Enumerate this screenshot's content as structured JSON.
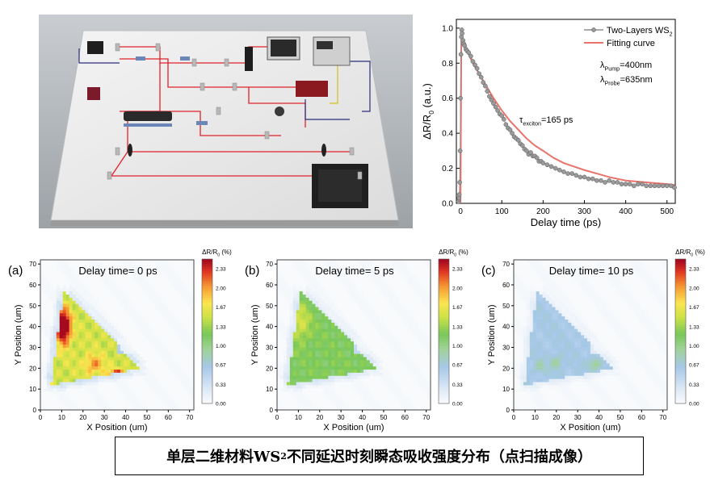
{
  "caption": {
    "before": "单层二维材料WS",
    "sub": "2",
    "after": "不同延迟时刻瞬态吸收强度分布（点扫描成像）"
  },
  "chart_data": [
    {
      "type": "scatter",
      "xlabel": "Delay time (ps)",
      "ylabel_main": "ΔR/R",
      "ylabel_sub": "0",
      "ylabel_unit": " (a.u.)",
      "xlim": [
        -10,
        520
      ],
      "ylim": [
        0,
        1.05
      ],
      "xticks": [
        0,
        100,
        200,
        300,
        400,
        500
      ],
      "yticks": [
        0.0,
        0.2,
        0.4,
        0.6,
        0.8,
        1.0
      ],
      "legend_position": "top-right",
      "legend": [
        {
          "main": "Two-Layers WS",
          "sub": "2",
          "color": "#555555",
          "kind": "marker-line"
        },
        {
          "main": "Fitting curve",
          "sub": "",
          "color": "#e9736b",
          "kind": "line"
        }
      ],
      "annotations": {
        "pump": {
          "pre": "λ",
          "sub": "Pump",
          "post": "=400nm"
        },
        "probe": {
          "pre": "λ",
          "sub": "Probe",
          "post": "=635nm"
        },
        "tau": {
          "pre": "τ",
          "sub": "exciton",
          "post": "=165 ps"
        }
      },
      "series": [
        {
          "name": "Two-Layers WS2",
          "color": "#8a8a8a",
          "x": [
            -5,
            -4,
            -3,
            -2,
            -1,
            0,
            1,
            2,
            3,
            4,
            6,
            8,
            10,
            13,
            16,
            20,
            25,
            30,
            35,
            40,
            45,
            50,
            55,
            60,
            65,
            70,
            75,
            80,
            85,
            90,
            95,
            100,
            105,
            110,
            115,
            120,
            125,
            130,
            135,
            140,
            145,
            150,
            155,
            160,
            165,
            170,
            175,
            180,
            185,
            190,
            195,
            200,
            210,
            220,
            230,
            240,
            250,
            260,
            270,
            280,
            290,
            300,
            310,
            320,
            330,
            340,
            350,
            360,
            370,
            380,
            390,
            400,
            410,
            420,
            430,
            440,
            450,
            460,
            470,
            480,
            490,
            500,
            510,
            518
          ],
          "y": [
            0.01,
            0.03,
            0.05,
            0.12,
            0.3,
            0.6,
            0.85,
            0.95,
            0.99,
            0.97,
            0.93,
            0.91,
            0.9,
            0.88,
            0.87,
            0.86,
            0.84,
            0.81,
            0.79,
            0.77,
            0.74,
            0.72,
            0.69,
            0.67,
            0.64,
            0.61,
            0.59,
            0.57,
            0.55,
            0.53,
            0.51,
            0.5,
            0.48,
            0.45,
            0.43,
            0.42,
            0.4,
            0.38,
            0.37,
            0.36,
            0.34,
            0.33,
            0.31,
            0.3,
            0.28,
            0.29,
            0.27,
            0.27,
            0.26,
            0.24,
            0.24,
            0.23,
            0.22,
            0.21,
            0.2,
            0.19,
            0.18,
            0.17,
            0.17,
            0.16,
            0.15,
            0.15,
            0.14,
            0.14,
            0.13,
            0.13,
            0.12,
            0.13,
            0.12,
            0.12,
            0.11,
            0.11,
            0.11,
            0.1,
            0.11,
            0.11,
            0.1,
            0.1,
            0.1,
            0.1,
            0.1,
            0.1,
            0.1,
            0.09
          ]
        },
        {
          "name": "Fitting curve",
          "color": "#e9736b",
          "x": [
            0,
            2,
            5,
            10,
            20,
            30,
            40,
            50,
            60,
            80,
            100,
            120,
            140,
            160,
            180,
            200,
            225,
            250,
            275,
            300,
            330,
            360,
            400,
            450,
            500,
            518
          ],
          "y": [
            0.0,
            0.93,
            0.93,
            0.9,
            0.85,
            0.8,
            0.76,
            0.72,
            0.68,
            0.6,
            0.53,
            0.47,
            0.42,
            0.37,
            0.33,
            0.3,
            0.26,
            0.23,
            0.21,
            0.19,
            0.17,
            0.15,
            0.13,
            0.12,
            0.11,
            0.105
          ]
        }
      ]
    },
    {
      "type": "heatmap",
      "panel_label": "(a)",
      "delay_label": "Delay time= 0 ps",
      "xlabel": "X Position (um)",
      "ylabel": "Y Position (um)",
      "xlim": [
        0,
        72
      ],
      "ylim": [
        0,
        72
      ],
      "xticks": [
        0,
        10,
        20,
        30,
        40,
        50,
        60,
        70
      ],
      "yticks": [
        0,
        10,
        20,
        30,
        40,
        50,
        60,
        70
      ],
      "colorbar_title": {
        "main": "ΔR/R",
        "sub": "0",
        "unit": " (%)"
      },
      "colorbar_ticks": [
        "0.00",
        "0.33",
        "0.67",
        "1.00",
        "1.33",
        "1.67",
        "2.00",
        "2.33"
      ],
      "vmin": 0,
      "vmax": 2.5
    },
    {
      "type": "heatmap",
      "panel_label": "(b)",
      "delay_label": "Delay time= 5 ps",
      "xlabel": "X Position (um)",
      "ylabel": "Y Position (um)",
      "xlim": [
        0,
        72
      ],
      "ylim": [
        0,
        72
      ],
      "xticks": [
        0,
        10,
        20,
        30,
        40,
        50,
        60,
        70
      ],
      "yticks": [
        0,
        10,
        20,
        30,
        40,
        50,
        60,
        70
      ],
      "colorbar_title": {
        "main": "ΔR/R",
        "sub": "0",
        "unit": " (%)"
      },
      "colorbar_ticks": [
        "0.00",
        "0.33",
        "0.67",
        "1.00",
        "1.33",
        "1.67",
        "2.00",
        "2.33"
      ],
      "vmin": 0,
      "vmax": 2.5
    },
    {
      "type": "heatmap",
      "panel_label": "(c)",
      "delay_label": "Delay time= 10 ps",
      "xlabel": "X Position (um)",
      "ylabel": "Y Position (um)",
      "xlim": [
        0,
        72
      ],
      "ylim": [
        0,
        72
      ],
      "xticks": [
        0,
        10,
        20,
        30,
        40,
        50,
        60,
        70
      ],
      "yticks": [
        0,
        10,
        20,
        30,
        40,
        50,
        60,
        70
      ],
      "colorbar_title": {
        "main": "ΔR/R",
        "sub": "0",
        "unit": " (%)"
      },
      "colorbar_ticks": [
        "0.00",
        "0.33",
        "0.67",
        "1.00",
        "1.33",
        "1.67",
        "2.00",
        "2.33"
      ],
      "vmin": 0,
      "vmax": 2.5
    }
  ]
}
